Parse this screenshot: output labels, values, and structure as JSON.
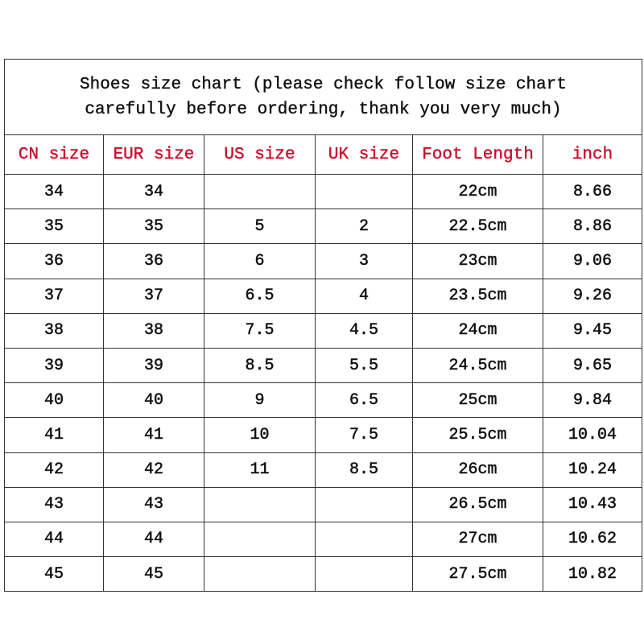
{
  "title_line1": "Shoes size chart (please check follow size chart",
  "title_line2": "carefully before ordering, thank you very much)",
  "header_color": "#c8102e",
  "columns": [
    "CN size",
    "EUR size",
    "US size",
    "UK size",
    "Foot Length",
    "inch"
  ],
  "rows": [
    [
      "34",
      "34",
      "",
      "",
      "22cm",
      "8.66"
    ],
    [
      "35",
      "35",
      "5",
      "2",
      "22.5cm",
      "8.86"
    ],
    [
      "36",
      "36",
      "6",
      "3",
      "23cm",
      "9.06"
    ],
    [
      "37",
      "37",
      "6.5",
      "4",
      "23.5cm",
      "9.26"
    ],
    [
      "38",
      "38",
      "7.5",
      "4.5",
      "24cm",
      "9.45"
    ],
    [
      "39",
      "39",
      "8.5",
      "5.5",
      "24.5cm",
      "9.65"
    ],
    [
      "40",
      "40",
      "9",
      "6.5",
      "25cm",
      "9.84"
    ],
    [
      "41",
      "41",
      "10",
      "7.5",
      "25.5cm",
      "10.04"
    ],
    [
      "42",
      "42",
      "11",
      "8.5",
      "26cm",
      "10.24"
    ],
    [
      "43",
      "43",
      "",
      "",
      "26.5cm",
      "10.43"
    ],
    [
      "44",
      "44",
      "",
      "",
      "27cm",
      "10.62"
    ],
    [
      "45",
      "45",
      "",
      "",
      "27.5cm",
      "10.82"
    ]
  ]
}
